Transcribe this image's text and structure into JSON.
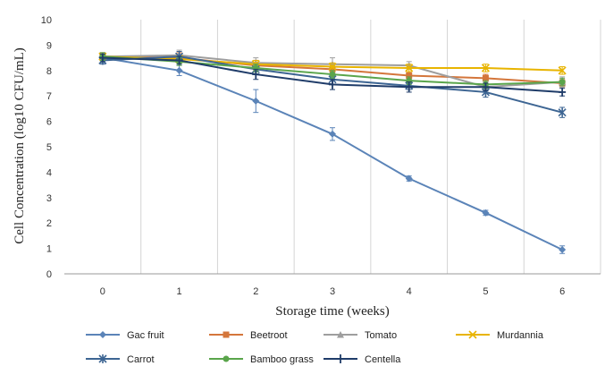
{
  "chart_data": {
    "type": "line",
    "xlabel": "Storage time (weeks)",
    "ylabel": "Cell Concentration (log10 CFU/mL)",
    "x": [
      0,
      1,
      2,
      3,
      4,
      5,
      6
    ],
    "xlim": [
      -0.5,
      6.5
    ],
    "ylim": [
      0,
      10
    ],
    "yticks": [
      0,
      1,
      2,
      3,
      4,
      5,
      6,
      7,
      8,
      9,
      10
    ],
    "xticks": [
      0,
      1,
      2,
      3,
      4,
      5,
      6
    ],
    "grid": "vertical",
    "legend_position": "bottom",
    "series": [
      {
        "name": "Gac fruit",
        "color": "#5b84b8",
        "marker": "diamond",
        "values": [
          8.5,
          8.0,
          6.8,
          5.5,
          3.75,
          2.4,
          0.95
        ],
        "errors": [
          0.2,
          0.2,
          0.45,
          0.25,
          0.1,
          0.1,
          0.15
        ]
      },
      {
        "name": "Beetroot",
        "color": "#d4763b",
        "marker": "square",
        "values": [
          8.55,
          8.5,
          8.2,
          8.05,
          7.8,
          7.7,
          7.5
        ],
        "errors": [
          0.15,
          0.2,
          0.2,
          0.2,
          0.15,
          0.15,
          0.15
        ]
      },
      {
        "name": "Tomato",
        "color": "#9e9e9e",
        "marker": "triangle",
        "values": [
          8.55,
          8.6,
          8.3,
          8.25,
          8.2,
          7.35,
          7.55
        ],
        "errors": [
          0.15,
          0.2,
          0.2,
          0.25,
          0.15,
          0.2,
          0.2
        ]
      },
      {
        "name": "Murdannia",
        "color": "#e8b400",
        "marker": "x",
        "values": [
          8.55,
          8.45,
          8.25,
          8.15,
          8.1,
          8.1,
          8.0
        ],
        "errors": [
          0.15,
          0.15,
          0.15,
          0.15,
          0.15,
          0.15,
          0.15
        ]
      },
      {
        "name": "Carrot",
        "color": "#3d6593",
        "marker": "asterisk",
        "values": [
          8.4,
          8.55,
          8.05,
          7.65,
          7.4,
          7.15,
          6.35
        ],
        "errors": [
          0.15,
          0.2,
          0.2,
          0.2,
          0.15,
          0.2,
          0.2
        ]
      },
      {
        "name": "Bamboo grass",
        "color": "#5aa54b",
        "marker": "circle",
        "values": [
          8.55,
          8.35,
          8.1,
          7.85,
          7.6,
          7.45,
          7.55
        ],
        "errors": [
          0.15,
          0.15,
          0.15,
          0.15,
          0.15,
          0.15,
          0.15
        ]
      },
      {
        "name": "Centella",
        "color": "#1f3c69",
        "marker": "plus",
        "values": [
          8.5,
          8.4,
          7.85,
          7.45,
          7.35,
          7.35,
          7.15
        ],
        "errors": [
          0.15,
          0.15,
          0.2,
          0.2,
          0.2,
          0.15,
          0.15
        ]
      }
    ]
  }
}
